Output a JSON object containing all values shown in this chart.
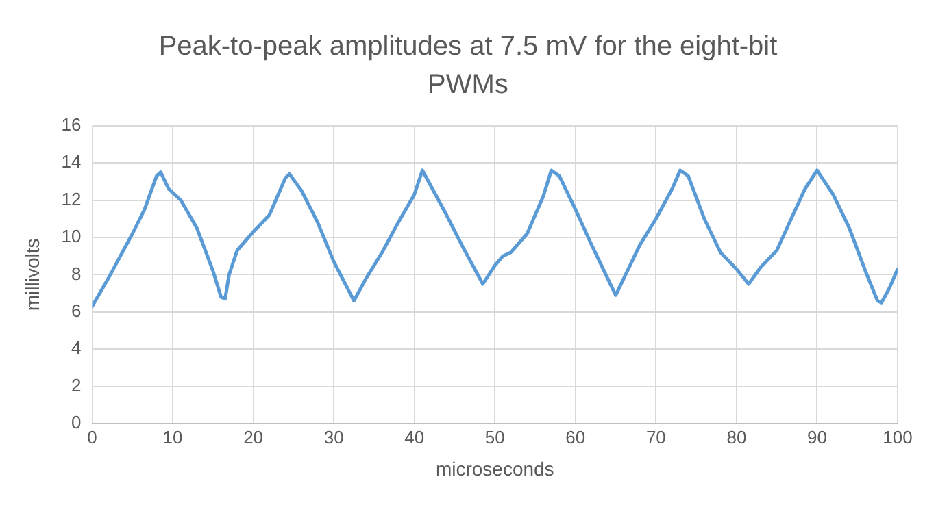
{
  "chart_data": {
    "type": "line",
    "title": "Peak-to-peak amplitudes at 7.5 mV for the eight-bit PWMs",
    "xlabel": "microseconds",
    "ylabel": "millivolts",
    "xlim": [
      0,
      100
    ],
    "xticks": [
      0,
      10,
      20,
      30,
      40,
      50,
      60,
      70,
      80,
      90,
      100
    ],
    "ylim": [
      0,
      16
    ],
    "yticks": [
      0,
      2,
      4,
      6,
      8,
      10,
      12,
      14,
      16
    ],
    "grid": true,
    "legend": false,
    "marker": "none",
    "line_style": "solid",
    "series": [
      {
        "color": "#5b9bd5",
        "x": [
          0,
          2,
          3.5,
          5,
          6.5,
          8,
          8.5,
          9.5,
          11,
          13,
          15,
          16,
          16.5,
          17,
          18,
          20,
          22,
          24,
          24.5,
          26,
          28,
          30,
          32.5,
          34,
          36,
          38,
          40,
          41,
          42,
          44,
          46,
          48.5,
          50,
          51,
          52,
          54,
          56,
          57,
          58,
          60,
          62,
          64,
          65,
          66,
          68,
          70,
          72,
          73,
          74,
          76,
          78,
          80,
          81.5,
          83,
          85,
          87,
          88.5,
          90,
          92,
          94,
          96,
          97.5,
          98,
          99,
          100
        ],
        "values": [
          6.3,
          7.8,
          9,
          10.2,
          11.5,
          13.3,
          13.5,
          12.6,
          12,
          10.5,
          8.2,
          6.8,
          6.7,
          8,
          9.3,
          10.3,
          11.2,
          13.2,
          13.4,
          12.5,
          10.8,
          8.7,
          6.6,
          7.8,
          9.2,
          10.8,
          12.3,
          13.6,
          12.8,
          11.2,
          9.5,
          7.5,
          8.5,
          9,
          9.2,
          10.2,
          12.2,
          13.6,
          13.3,
          11.5,
          9.6,
          7.8,
          6.9,
          7.8,
          9.6,
          11,
          12.6,
          13.6,
          13.3,
          11,
          9.2,
          8.3,
          7.5,
          8.4,
          9.3,
          11.2,
          12.6,
          13.6,
          12.3,
          10.5,
          8.2,
          6.6,
          6.5,
          7.3,
          8.3
        ]
      }
    ]
  }
}
